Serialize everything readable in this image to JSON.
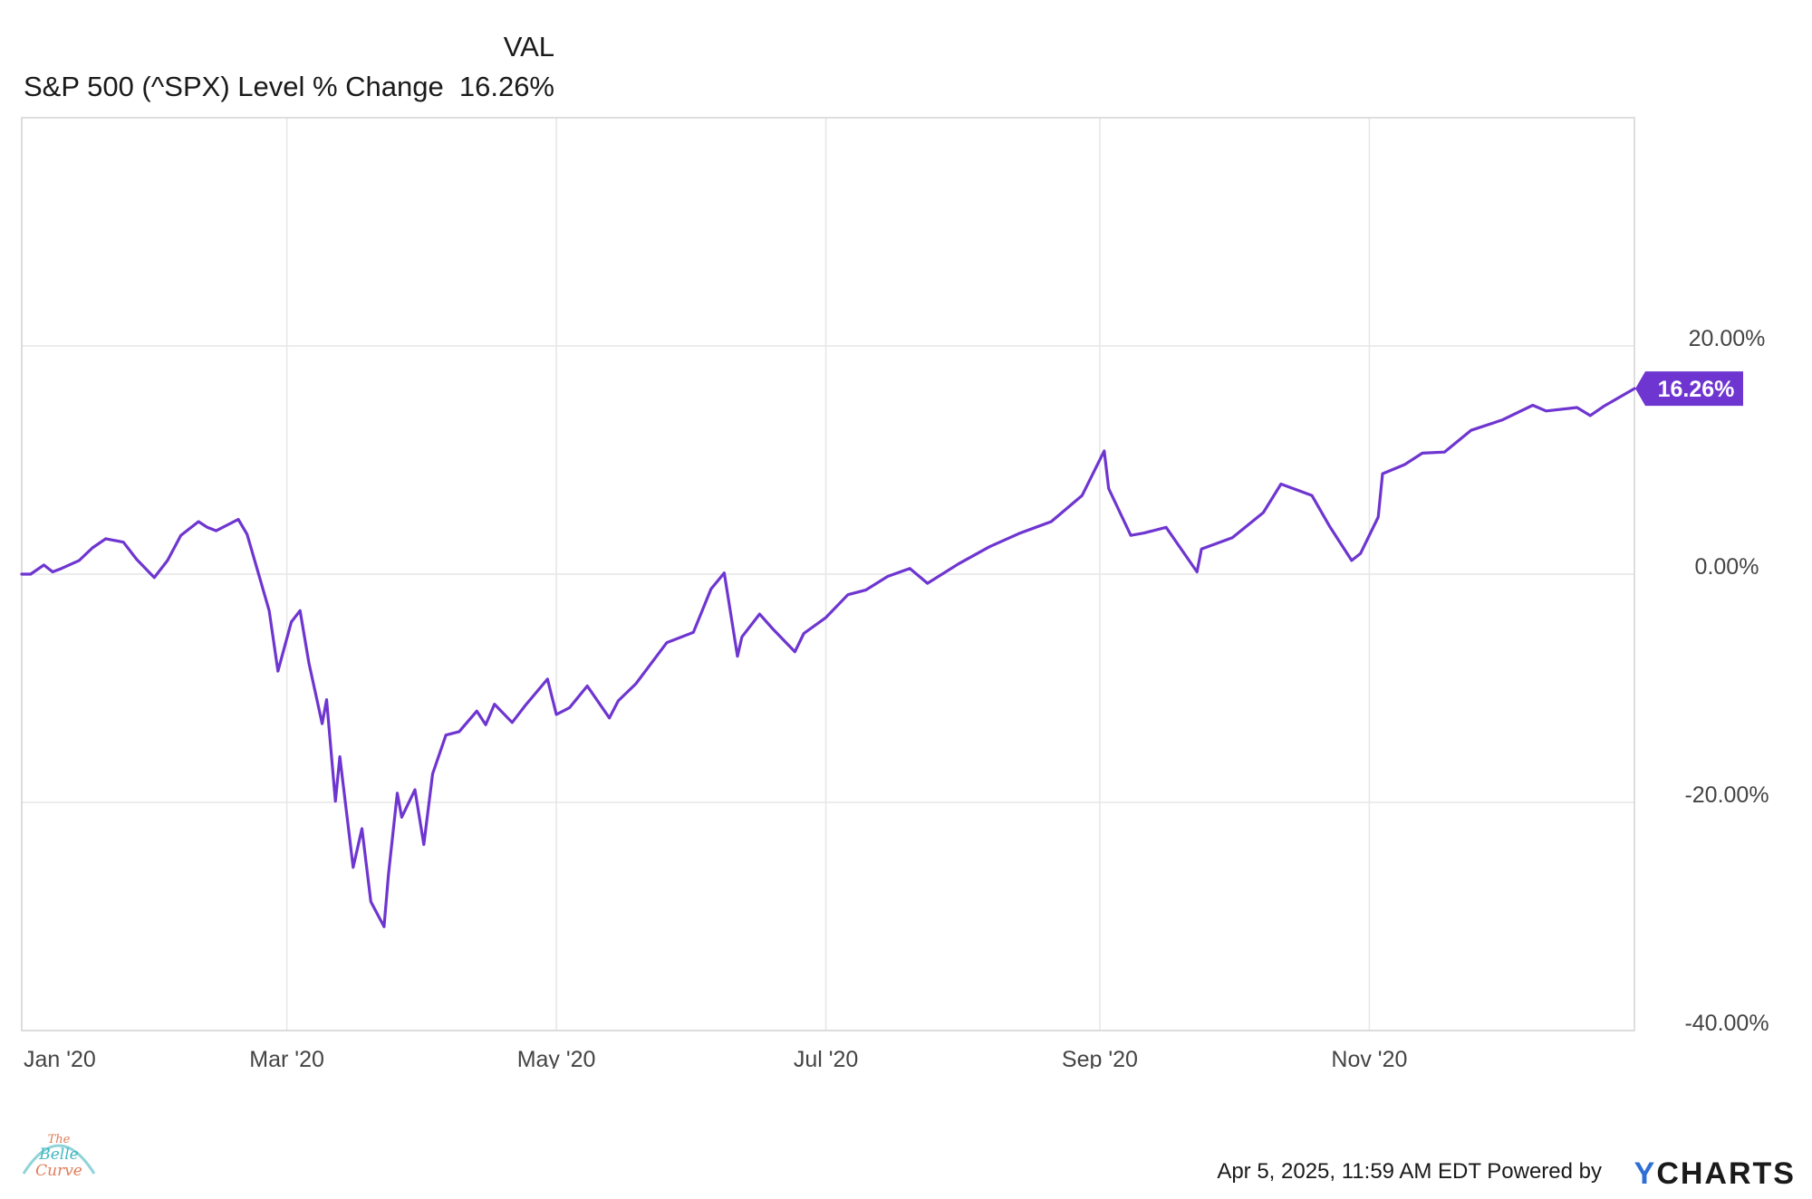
{
  "header": {
    "col_label": "VAL",
    "series_label": "S&P 500 (^SPX) Level % Change",
    "series_value": "16.26%"
  },
  "footer": {
    "timestamp": "Apr 5, 2025, 11:59 AM EDT Powered by",
    "brand_y": "Y",
    "brand_rest": "CHARTS"
  },
  "logo": {
    "text": "The Belle Curve"
  },
  "colors": {
    "line": "#6e35d0",
    "grid": "#e6e6e6",
    "axis_text": "#444444",
    "callout": "#6e35d0"
  },
  "chart_data": {
    "type": "line",
    "title": "",
    "xlabel": "",
    "ylabel": "",
    "x_ticks": [
      "Jan '20",
      "Mar '20",
      "May '20",
      "Jul '20",
      "Sep '20",
      "Nov '20"
    ],
    "y_ticks": [
      "20.00%",
      "0.00%",
      "-20.00%",
      "-40.00%"
    ],
    "ylim": [
      -40,
      40
    ],
    "y_unit": "%",
    "grid": true,
    "last_value_label": "16.26%",
    "series": [
      {
        "name": "S&P 500 (^SPX) Level % Change",
        "x": [
          "2020-01-01",
          "2020-01-03",
          "2020-01-06",
          "2020-01-08",
          "2020-01-10",
          "2020-01-14",
          "2020-01-17",
          "2020-01-20",
          "2020-01-24",
          "2020-01-27",
          "2020-01-31",
          "2020-02-03",
          "2020-02-06",
          "2020-02-10",
          "2020-02-12",
          "2020-02-14",
          "2020-02-19",
          "2020-02-21",
          "2020-02-24",
          "2020-02-26",
          "2020-02-28",
          "2020-03-02",
          "2020-03-04",
          "2020-03-06",
          "2020-03-09",
          "2020-03-10",
          "2020-03-12",
          "2020-03-13",
          "2020-03-16",
          "2020-03-18",
          "2020-03-19",
          "2020-03-20",
          "2020-03-23",
          "2020-03-24",
          "2020-03-26",
          "2020-03-27",
          "2020-03-30",
          "2020-04-01",
          "2020-04-03",
          "2020-04-06",
          "2020-04-09",
          "2020-04-13",
          "2020-04-15",
          "2020-04-17",
          "2020-04-21",
          "2020-04-24",
          "2020-04-29",
          "2020-05-01",
          "2020-05-04",
          "2020-05-08",
          "2020-05-13",
          "2020-05-15",
          "2020-05-19",
          "2020-05-26",
          "2020-06-01",
          "2020-06-05",
          "2020-06-08",
          "2020-06-11",
          "2020-06-12",
          "2020-06-16",
          "2020-06-19",
          "2020-06-24",
          "2020-06-26",
          "2020-07-01",
          "2020-07-06",
          "2020-07-10",
          "2020-07-15",
          "2020-07-20",
          "2020-07-24",
          "2020-07-31",
          "2020-08-07",
          "2020-08-14",
          "2020-08-21",
          "2020-08-28",
          "2020-09-02",
          "2020-09-03",
          "2020-09-08",
          "2020-09-11",
          "2020-09-16",
          "2020-09-23",
          "2020-09-24",
          "2020-10-01",
          "2020-10-08",
          "2020-10-12",
          "2020-10-19",
          "2020-10-23",
          "2020-10-28",
          "2020-10-30",
          "2020-11-03",
          "2020-11-04",
          "2020-11-09",
          "2020-11-13",
          "2020-11-18",
          "2020-11-24",
          "2020-12-01",
          "2020-12-08",
          "2020-12-11",
          "2020-12-18",
          "2020-12-21",
          "2020-12-24",
          "2020-12-31"
        ],
        "values": [
          0.0,
          0.0,
          0.8,
          0.2,
          0.5,
          1.2,
          2.3,
          3.1,
          2.8,
          1.3,
          -0.3,
          1.2,
          3.4,
          4.6,
          4.1,
          3.8,
          4.8,
          3.5,
          -0.5,
          -3.2,
          -8.5,
          -4.2,
          -3.2,
          -7.8,
          -13.1,
          -11.0,
          -19.9,
          -16.0,
          -25.7,
          -22.3,
          -25.5,
          -28.7,
          -30.9,
          -26.3,
          -19.2,
          -21.3,
          -18.9,
          -23.7,
          -17.5,
          -14.1,
          -13.8,
          -12.0,
          -13.2,
          -11.4,
          -13.0,
          -11.5,
          -9.2,
          -12.3,
          -11.7,
          -9.8,
          -12.6,
          -11.1,
          -9.6,
          -6.0,
          -5.1,
          -1.3,
          0.1,
          -7.2,
          -5.5,
          -3.5,
          -4.8,
          -6.8,
          -5.2,
          -3.8,
          -1.8,
          -1.4,
          -0.2,
          0.5,
          -0.8,
          0.9,
          2.4,
          3.6,
          4.6,
          6.9,
          10.8,
          7.5,
          3.4,
          3.6,
          4.1,
          0.2,
          2.2,
          3.2,
          5.4,
          7.9,
          6.9,
          4.2,
          1.2,
          1.8,
          5.0,
          8.8,
          9.6,
          10.6,
          10.7,
          12.6,
          13.5,
          14.8,
          14.3,
          14.6,
          13.9,
          14.7,
          16.26
        ]
      }
    ]
  }
}
